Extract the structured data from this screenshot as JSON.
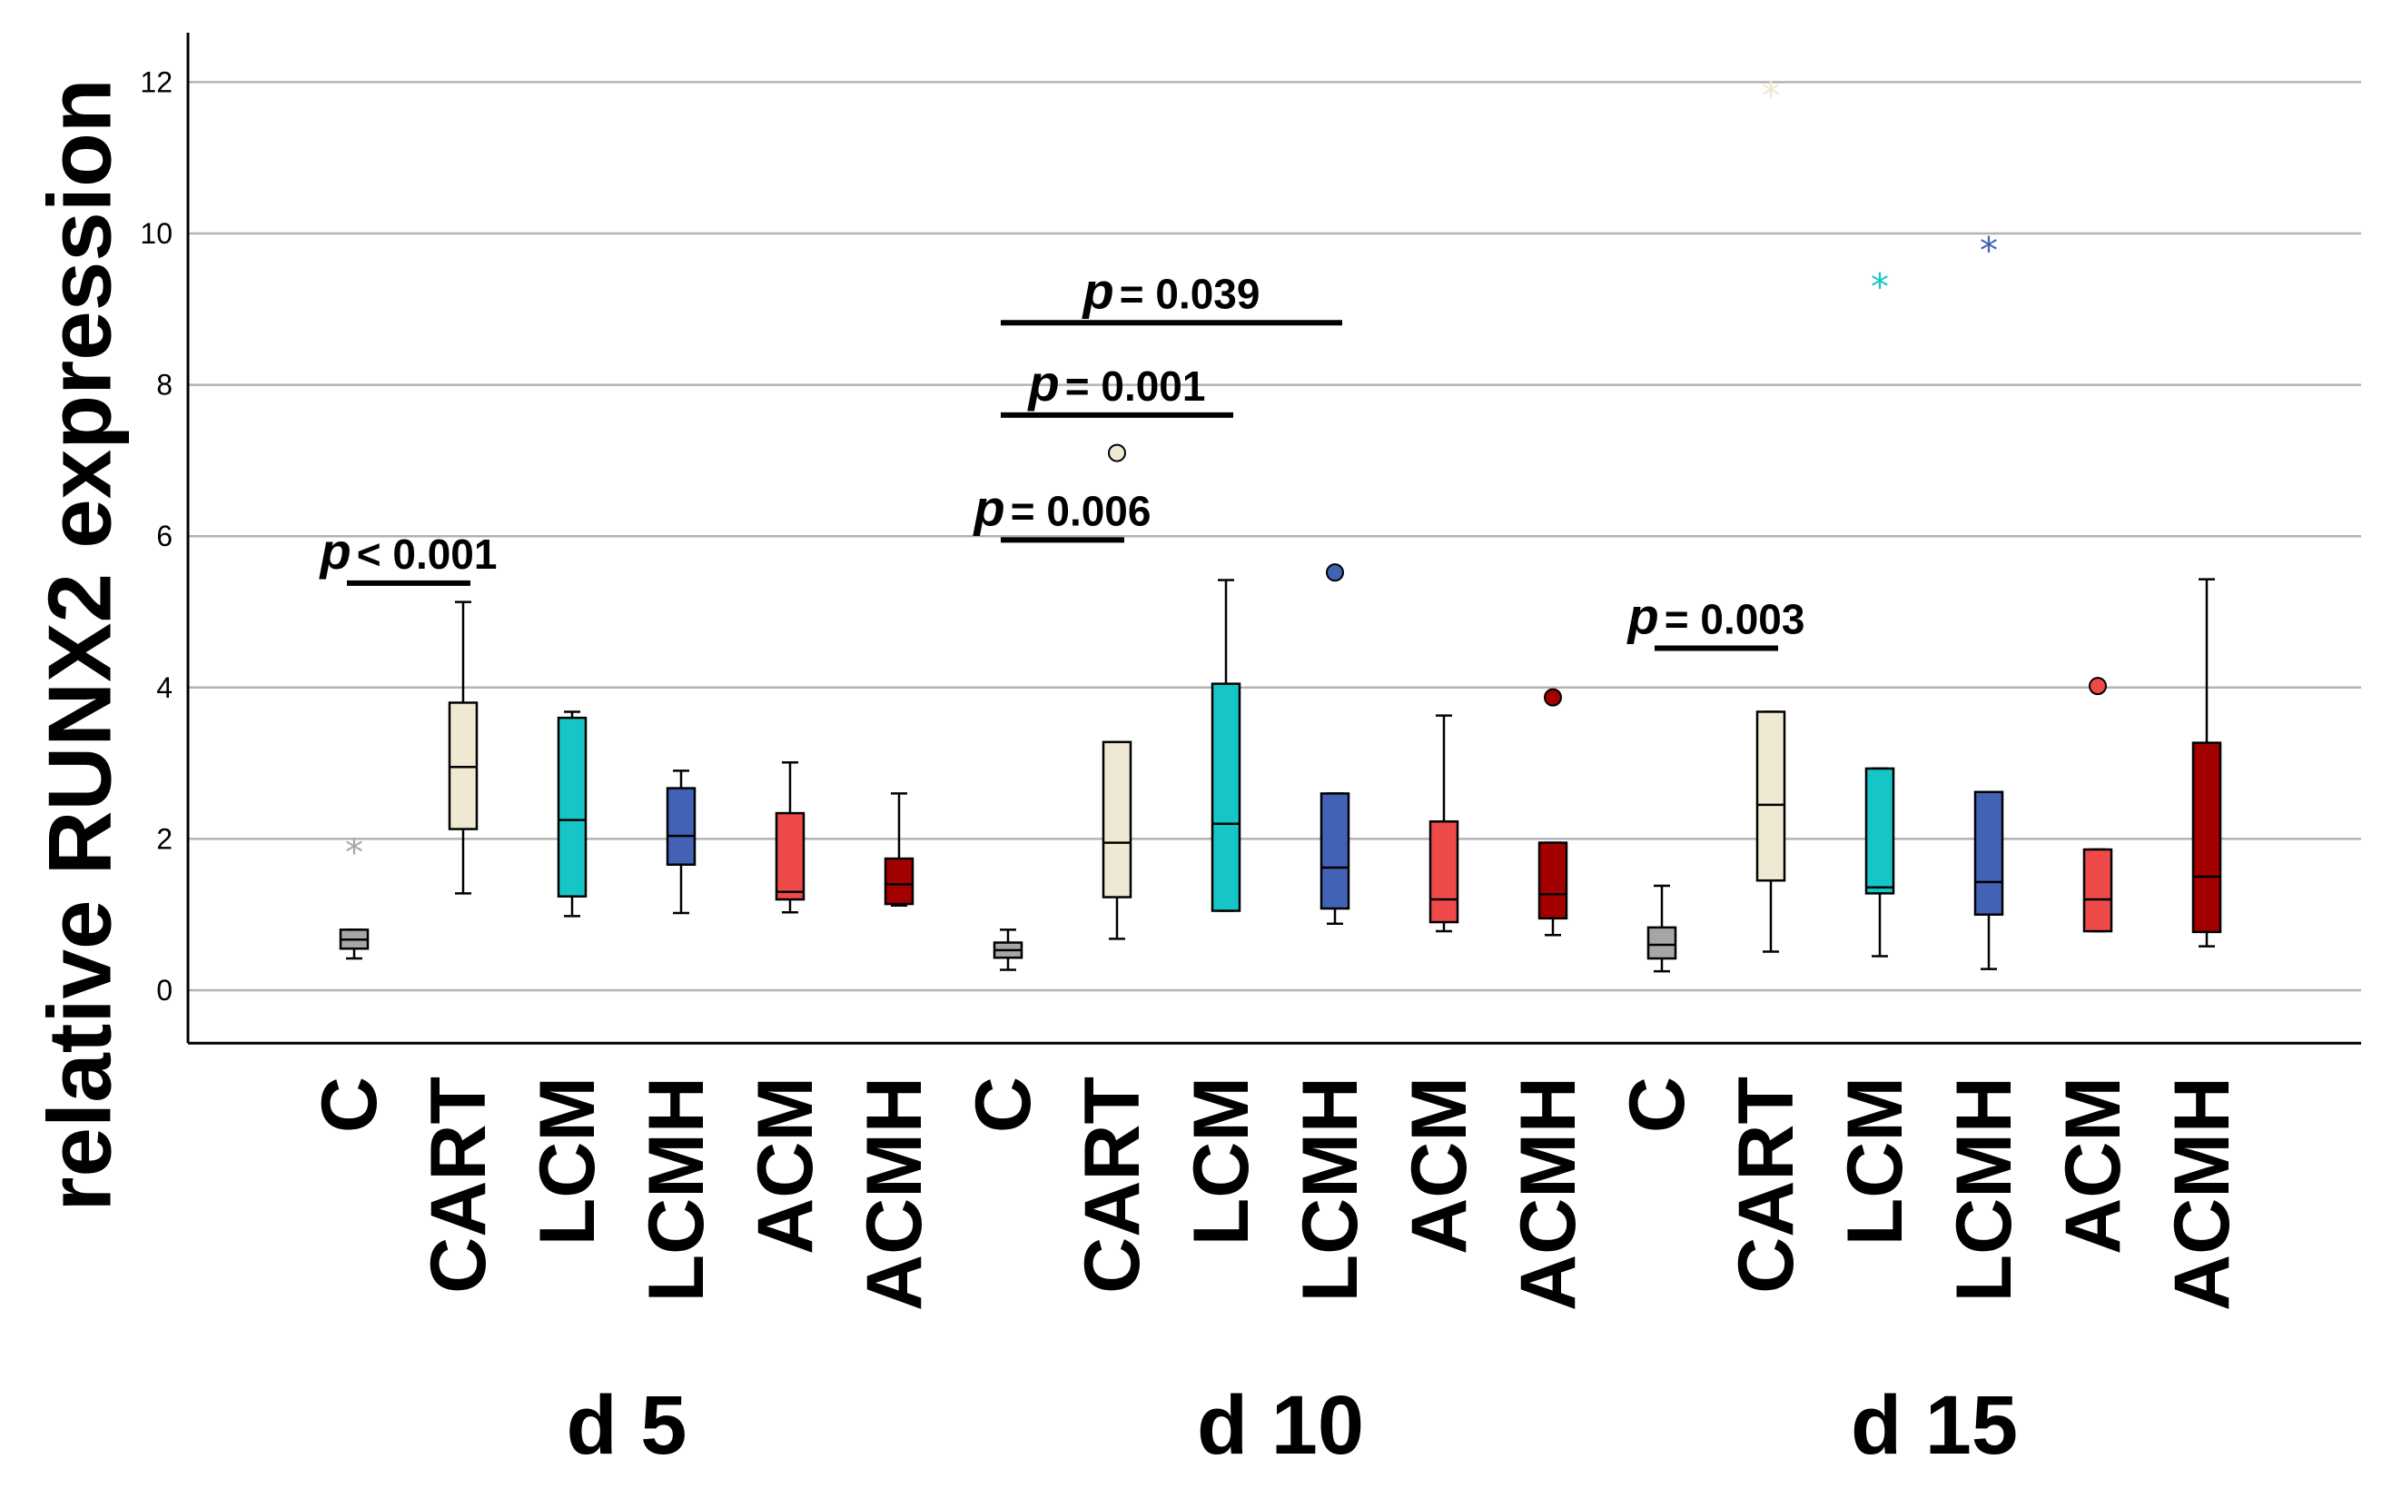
{
  "chart_data": {
    "type": "box",
    "ylabel": "relative RUNX2 expression",
    "yticks": [
      0,
      2,
      4,
      6,
      8,
      10,
      12
    ],
    "ylim": [
      -0.7,
      12.7
    ],
    "grid": true,
    "groups": [
      {
        "label": "d 5",
        "boxes": [
          {
            "category": "C",
            "color": "#a6a6a6",
            "min": 0.42,
            "q1": 0.55,
            "median": 0.67,
            "q3": 0.8,
            "max": 0.8
          },
          {
            "category": "CART",
            "color": "#efe8d2",
            "min": 1.28,
            "q1": 2.13,
            "median": 2.95,
            "q3": 3.8,
            "max": 5.13
          },
          {
            "category": "LCM",
            "color": "#16c6c6",
            "min": 0.98,
            "q1": 1.24,
            "median": 2.25,
            "q3": 3.6,
            "max": 3.68
          },
          {
            "category": "LCMH",
            "color": "#4263b5",
            "min": 1.02,
            "q1": 1.66,
            "median": 2.04,
            "q3": 2.67,
            "max": 2.9
          },
          {
            "category": "ACM",
            "color": "#ee4a4a",
            "min": 1.03,
            "q1": 1.2,
            "median": 1.3,
            "q3": 2.34,
            "max": 3.01
          },
          {
            "category": "ACMH",
            "color": "#a30000",
            "min": 1.12,
            "q1": 1.14,
            "median": 1.4,
            "q3": 1.74,
            "max": 2.6
          }
        ]
      },
      {
        "label": "d 10",
        "boxes": [
          {
            "category": "C",
            "color": "#a6a6a6",
            "min": 0.27,
            "q1": 0.43,
            "median": 0.53,
            "q3": 0.63,
            "max": 0.8
          },
          {
            "category": "CART",
            "color": "#efe8d2",
            "min": 0.68,
            "q1": 1.23,
            "median": 1.95,
            "q3": 3.28,
            "max": 3.28
          },
          {
            "category": "LCM",
            "color": "#16c6c6",
            "min": 1.05,
            "q1": 1.05,
            "median": 2.2,
            "q3": 4.05,
            "max": 5.42
          },
          {
            "category": "LCMH",
            "color": "#4263b5",
            "min": 0.88,
            "q1": 1.08,
            "median": 1.62,
            "q3": 2.6,
            "max": 2.6
          },
          {
            "category": "ACM",
            "color": "#ee4a4a",
            "min": 0.78,
            "q1": 0.9,
            "median": 1.2,
            "q3": 2.23,
            "max": 3.63
          },
          {
            "category": "ACMH",
            "color": "#a30000",
            "min": 0.73,
            "q1": 0.95,
            "median": 1.27,
            "q3": 1.95,
            "max": 1.95
          }
        ]
      },
      {
        "label": "d 15",
        "boxes": [
          {
            "category": "C",
            "color": "#a6a6a6",
            "min": 0.25,
            "q1": 0.42,
            "median": 0.6,
            "q3": 0.83,
            "max": 1.38
          },
          {
            "category": "CART",
            "color": "#efe8d2",
            "min": 0.51,
            "q1": 1.45,
            "median": 2.45,
            "q3": 3.68,
            "max": 3.68
          },
          {
            "category": "LCM",
            "color": "#16c6c6",
            "min": 0.45,
            "q1": 1.28,
            "median": 1.36,
            "q3": 2.93,
            "max": 2.93
          },
          {
            "category": "LCMH",
            "color": "#4263b5",
            "min": 0.28,
            "q1": 1.0,
            "median": 1.43,
            "q3": 2.62,
            "max": 2.62
          },
          {
            "category": "ACM",
            "color": "#ee4a4a",
            "min": 0.78,
            "q1": 0.78,
            "median": 1.2,
            "q3": 1.86,
            "max": 1.86
          },
          {
            "category": "ACMH",
            "color": "#a30000",
            "min": 0.58,
            "q1": 0.77,
            "median": 1.5,
            "q3": 3.27,
            "max": 5.43
          }
        ]
      }
    ],
    "outliers": [
      {
        "group": 0,
        "box": 0,
        "value": 1.85,
        "marker": "star",
        "color": "#a6a6a6"
      },
      {
        "group": 1,
        "box": 1,
        "value": 7.1,
        "marker": "circle",
        "color": "#efe8d2"
      },
      {
        "group": 1,
        "box": 3,
        "value": 5.52,
        "marker": "circle",
        "color": "#4263b5"
      },
      {
        "group": 1,
        "box": 5,
        "value": 3.87,
        "marker": "circle",
        "color": "#a30000"
      },
      {
        "group": 2,
        "box": 1,
        "value": 11.85,
        "marker": "star",
        "color": "#efe8d2"
      },
      {
        "group": 2,
        "box": 2,
        "value": 9.32,
        "marker": "star",
        "color": "#16c6c6"
      },
      {
        "group": 2,
        "box": 3,
        "value": 9.8,
        "marker": "star",
        "color": "#4263b5"
      },
      {
        "group": 2,
        "box": 4,
        "value": 4.02,
        "marker": "circle",
        "color": "#ee4a4a"
      }
    ],
    "annotations": [
      {
        "group": 0,
        "from_box": 0,
        "to_box": 1,
        "y": 5.38,
        "p_label": "p",
        "text": "< 0.001"
      },
      {
        "group": 1,
        "from_box": 0,
        "to_box": 1,
        "y": 5.95,
        "p_label": "p",
        "text": "= 0.006"
      },
      {
        "group": 1,
        "from_box": 0,
        "to_box": 2,
        "y": 7.6,
        "p_label": "p",
        "text": "= 0.001"
      },
      {
        "group": 1,
        "from_box": 0,
        "to_box": 3,
        "y": 8.82,
        "p_label": "p",
        "text": "= 0.039"
      },
      {
        "group": 2,
        "from_box": 0,
        "to_box": 1,
        "y": 4.52,
        "p_label": "p",
        "text": "= 0.003"
      }
    ]
  }
}
